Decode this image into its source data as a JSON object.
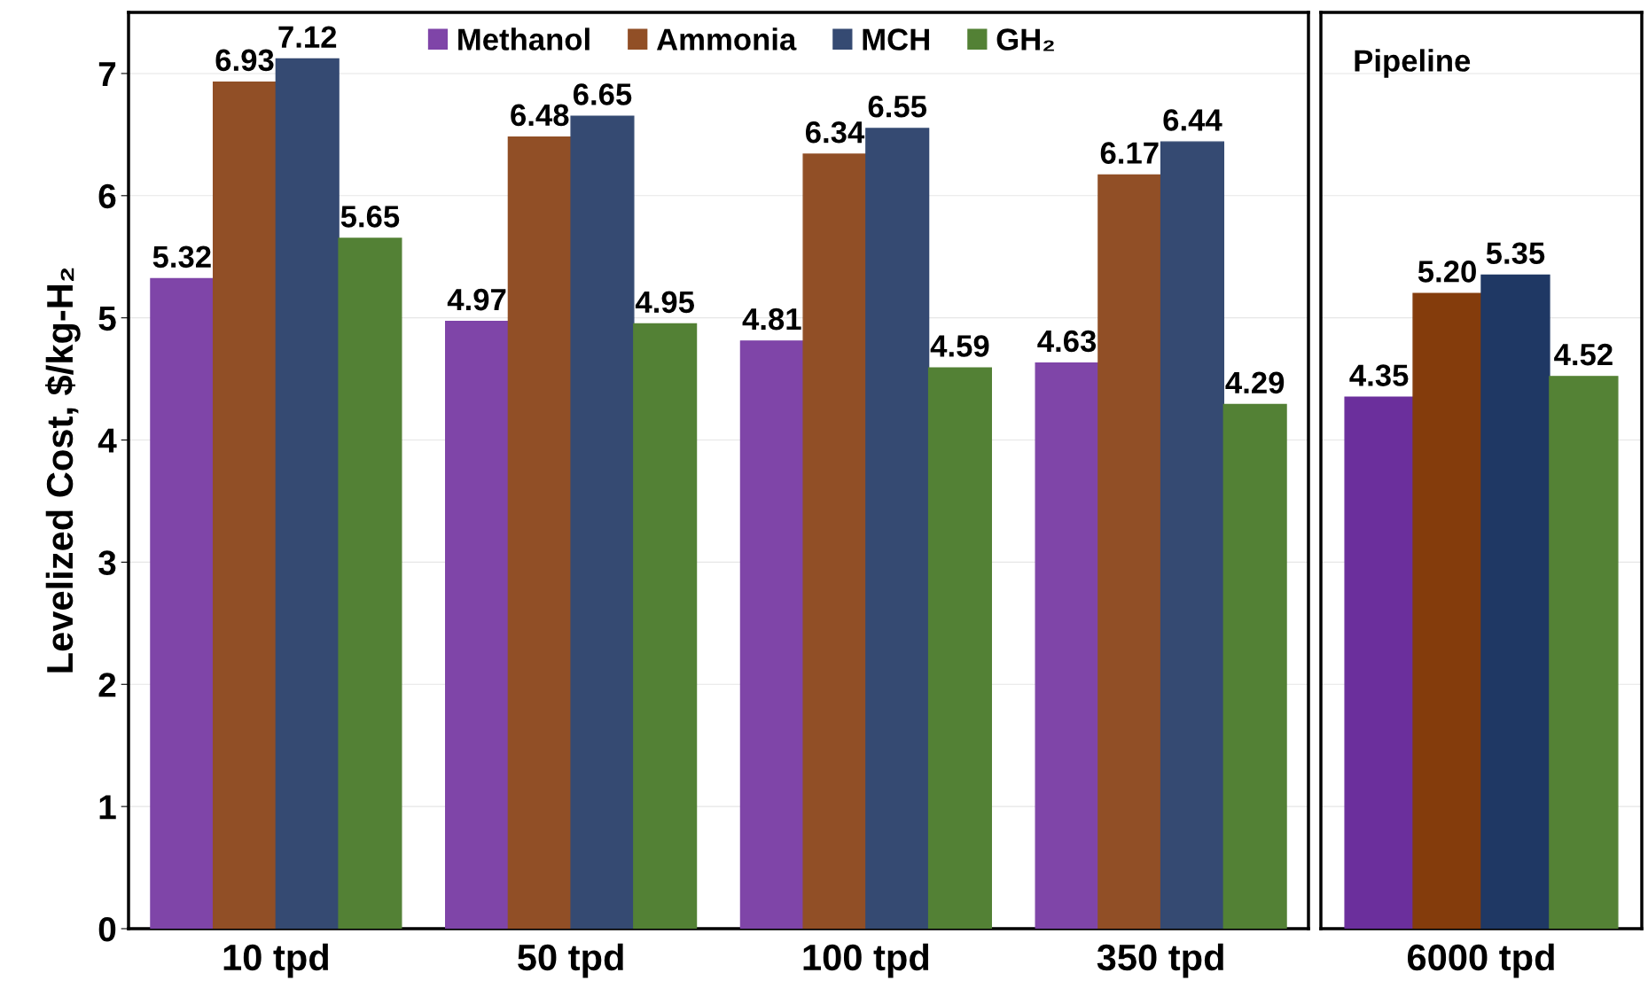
{
  "chart_data": [
    {
      "type": "bar",
      "categories": [
        "10 tpd",
        "50 tpd",
        "100 tpd",
        "350 tpd"
      ],
      "ylabel": "Levelized Cost, $/kg-H₂",
      "ylim": [
        0,
        7.5
      ],
      "yticks": [
        0,
        1,
        2,
        3,
        4,
        5,
        6,
        7
      ],
      "grid": "y",
      "legend": "top",
      "series": [
        {
          "name": "Methanol",
          "color": "#7f45a8",
          "values": [
            5.32,
            4.97,
            4.81,
            4.63
          ],
          "value_labels": [
            "5.32",
            "4.97",
            "4.81",
            "4.63"
          ]
        },
        {
          "name": "Ammonia",
          "color": "#914f26",
          "values": [
            6.93,
            6.48,
            6.34,
            6.17
          ],
          "value_labels": [
            "6.93",
            "6.48",
            "6.34",
            "6.17"
          ]
        },
        {
          "name": "MCH",
          "color": "#354a72",
          "values": [
            7.12,
            6.65,
            6.55,
            6.44
          ],
          "value_labels": [
            "7.12",
            "6.65",
            "6.55",
            "6.44"
          ]
        },
        {
          "name": "GH₂",
          "color": "#538135",
          "values": [
            5.65,
            4.95,
            4.59,
            4.29
          ],
          "value_labels": [
            "5.65",
            "4.95",
            "4.59",
            "4.29"
          ]
        }
      ]
    },
    {
      "type": "bar",
      "title": "Pipeline",
      "categories": [
        "6000 tpd"
      ],
      "ylim": [
        0,
        7.5
      ],
      "yticks": [
        0,
        1,
        2,
        3,
        4,
        5,
        6,
        7
      ],
      "grid": "y",
      "tick_labels": "x",
      "series": [
        {
          "color": "#6b2f9c",
          "values": [
            4.35
          ],
          "value_labels": [
            "4.35"
          ]
        },
        {
          "color": "#843c0c",
          "values": [
            5.2
          ],
          "value_labels": [
            "5.20"
          ]
        },
        {
          "color": "#1f3864",
          "values": [
            5.35
          ],
          "value_labels": [
            "5.35"
          ]
        },
        {
          "color": "#548235",
          "values": [
            4.52
          ],
          "value_labels": [
            "4.52"
          ]
        }
      ]
    }
  ]
}
